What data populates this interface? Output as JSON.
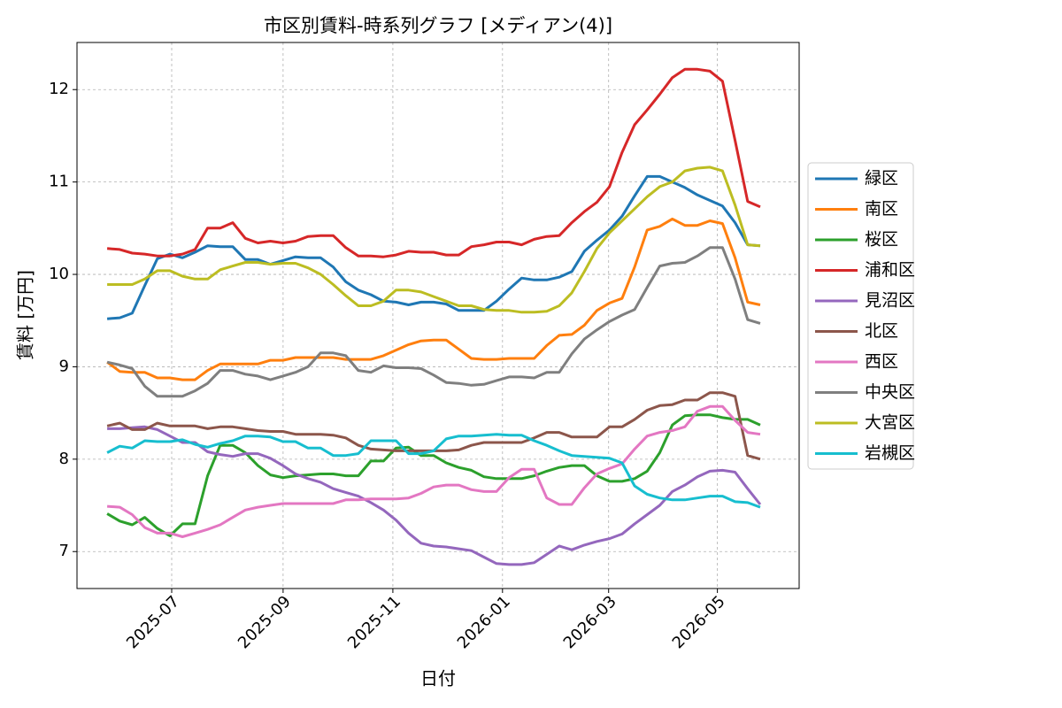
{
  "chart_data": {
    "type": "line",
    "title": "市区別賃料-時系列グラフ [メディアン(4)]",
    "x_label": "日付",
    "y_label": "賃料 [万円]",
    "xlim": [
      -2.4,
      55.1
    ],
    "xticks": [
      {
        "value": 5.14,
        "label": "2025-07"
      },
      {
        "value": 14.01,
        "label": "2025-09"
      },
      {
        "value": 22.75,
        "label": "2025-11"
      },
      {
        "value": 31.48,
        "label": "2026-01"
      },
      {
        "value": 39.93,
        "label": "2026-03"
      },
      {
        "value": 48.59,
        "label": "2026-05"
      }
    ],
    "ylim": [
      6.6,
      12.51
    ],
    "yticks": [
      7,
      8,
      9,
      10,
      11,
      12
    ],
    "grid": true,
    "legend": "right",
    "series": [
      {
        "name": "緑区",
        "color": "#1f77b4",
        "values": [
          9.52,
          9.53,
          9.58,
          9.88,
          10.17,
          10.22,
          10.18,
          10.24,
          10.31,
          10.3,
          10.3,
          10.16,
          10.16,
          10.11,
          10.15,
          10.19,
          10.18,
          10.18,
          10.08,
          9.92,
          9.83,
          9.78,
          9.71,
          9.7,
          9.67,
          9.7,
          9.7,
          9.68,
          9.61,
          9.61,
          9.61,
          9.71,
          9.84,
          9.96,
          9.94,
          9.94,
          9.97,
          10.03,
          10.25,
          10.37,
          10.48,
          10.63,
          10.85,
          11.06,
          11.06,
          11.0,
          10.94,
          10.86,
          10.8,
          10.74,
          10.56,
          10.32,
          10.31
        ]
      },
      {
        "name": "南区",
        "color": "#ff7f0e",
        "values": [
          9.05,
          8.95,
          8.94,
          8.94,
          8.88,
          8.88,
          8.86,
          8.86,
          8.96,
          9.03,
          9.03,
          9.03,
          9.03,
          9.07,
          9.07,
          9.1,
          9.1,
          9.1,
          9.1,
          9.08,
          9.08,
          9.08,
          9.12,
          9.18,
          9.24,
          9.28,
          9.29,
          9.29,
          9.19,
          9.09,
          9.08,
          9.08,
          9.09,
          9.09,
          9.09,
          9.23,
          9.34,
          9.35,
          9.45,
          9.61,
          9.69,
          9.74,
          10.08,
          10.48,
          10.52,
          10.6,
          10.53,
          10.53,
          10.58,
          10.55,
          10.18,
          9.7,
          9.67
        ]
      },
      {
        "name": "桜区",
        "color": "#2ca02c",
        "values": [
          7.41,
          7.33,
          7.29,
          7.37,
          7.25,
          7.17,
          7.3,
          7.3,
          7.82,
          8.15,
          8.15,
          8.07,
          7.93,
          7.83,
          7.8,
          7.82,
          7.83,
          7.84,
          7.84,
          7.82,
          7.82,
          7.98,
          7.98,
          8.12,
          8.13,
          8.04,
          8.04,
          7.96,
          7.91,
          7.88,
          7.81,
          7.79,
          7.79,
          7.79,
          7.82,
          7.87,
          7.91,
          7.93,
          7.93,
          7.82,
          7.76,
          7.76,
          7.79,
          7.87,
          8.07,
          8.37,
          8.47,
          8.48,
          8.48,
          8.45,
          8.43,
          8.43,
          8.37
        ]
      },
      {
        "name": "浦和区",
        "color": "#d62728",
        "values": [
          10.28,
          10.27,
          10.23,
          10.22,
          10.2,
          10.2,
          10.22,
          10.27,
          10.5,
          10.5,
          10.56,
          10.39,
          10.34,
          10.36,
          10.34,
          10.36,
          10.41,
          10.42,
          10.42,
          10.29,
          10.2,
          10.2,
          10.19,
          10.21,
          10.25,
          10.24,
          10.24,
          10.21,
          10.21,
          10.3,
          10.32,
          10.35,
          10.35,
          10.32,
          10.38,
          10.41,
          10.42,
          10.56,
          10.68,
          10.78,
          10.95,
          11.32,
          11.62,
          11.78,
          11.95,
          12.13,
          12.22,
          12.22,
          12.2,
          12.09,
          11.45,
          10.79,
          10.73
        ]
      },
      {
        "name": "見沼区",
        "color": "#9467bd",
        "values": [
          8.33,
          8.33,
          8.34,
          8.35,
          8.32,
          8.25,
          8.18,
          8.18,
          8.08,
          8.05,
          8.03,
          8.06,
          8.06,
          8.01,
          7.93,
          7.84,
          7.79,
          7.75,
          7.68,
          7.64,
          7.6,
          7.53,
          7.45,
          7.34,
          7.2,
          7.09,
          7.06,
          7.05,
          7.03,
          7.01,
          6.94,
          6.87,
          6.86,
          6.86,
          6.88,
          6.97,
          7.06,
          7.02,
          7.07,
          7.11,
          7.14,
          7.19,
          7.3,
          7.4,
          7.5,
          7.65,
          7.72,
          7.81,
          7.87,
          7.88,
          7.86,
          7.68,
          7.51
        ]
      },
      {
        "name": "北区",
        "color": "#8c564b",
        "values": [
          8.36,
          8.39,
          8.32,
          8.32,
          8.39,
          8.36,
          8.36,
          8.36,
          8.33,
          8.35,
          8.35,
          8.33,
          8.31,
          8.3,
          8.3,
          8.27,
          8.27,
          8.27,
          8.26,
          8.23,
          8.15,
          8.11,
          8.1,
          8.09,
          8.09,
          8.09,
          8.09,
          8.09,
          8.1,
          8.15,
          8.18,
          8.18,
          8.18,
          8.18,
          8.23,
          8.29,
          8.29,
          8.24,
          8.24,
          8.24,
          8.35,
          8.35,
          8.43,
          8.53,
          8.58,
          8.59,
          8.64,
          8.64,
          8.72,
          8.72,
          8.68,
          8.04,
          8.0
        ]
      },
      {
        "name": "西区",
        "color": "#e377c2",
        "values": [
          7.49,
          7.48,
          7.4,
          7.26,
          7.2,
          7.2,
          7.16,
          7.2,
          7.24,
          7.29,
          7.37,
          7.45,
          7.48,
          7.5,
          7.52,
          7.52,
          7.52,
          7.52,
          7.52,
          7.56,
          7.56,
          7.57,
          7.57,
          7.57,
          7.58,
          7.63,
          7.7,
          7.72,
          7.72,
          7.67,
          7.65,
          7.65,
          7.8,
          7.89,
          7.89,
          7.58,
          7.51,
          7.51,
          7.69,
          7.84,
          7.9,
          7.95,
          8.11,
          8.25,
          8.29,
          8.31,
          8.35,
          8.52,
          8.57,
          8.57,
          8.42,
          8.29,
          8.27
        ]
      },
      {
        "name": "中央区",
        "color": "#7f7f7f",
        "values": [
          9.05,
          9.02,
          8.98,
          8.79,
          8.68,
          8.68,
          8.68,
          8.74,
          8.82,
          8.96,
          8.96,
          8.92,
          8.9,
          8.86,
          8.9,
          8.94,
          9.0,
          9.15,
          9.15,
          9.12,
          8.96,
          8.94,
          9.01,
          8.99,
          8.99,
          8.98,
          8.91,
          8.83,
          8.82,
          8.8,
          8.81,
          8.85,
          8.89,
          8.89,
          8.88,
          8.94,
          8.94,
          9.14,
          9.3,
          9.4,
          9.49,
          9.56,
          9.62,
          9.86,
          10.09,
          10.12,
          10.13,
          10.2,
          10.29,
          10.29,
          9.95,
          9.51,
          9.47
        ]
      },
      {
        "name": "大宮区",
        "color": "#bcbd22",
        "values": [
          9.89,
          9.89,
          9.89,
          9.95,
          10.04,
          10.04,
          9.98,
          9.95,
          9.95,
          10.05,
          10.09,
          10.13,
          10.13,
          10.11,
          10.12,
          10.12,
          10.07,
          10.0,
          9.89,
          9.77,
          9.66,
          9.66,
          9.71,
          9.83,
          9.83,
          9.81,
          9.76,
          9.71,
          9.66,
          9.66,
          9.62,
          9.61,
          9.61,
          9.59,
          9.59,
          9.6,
          9.66,
          9.8,
          10.03,
          10.28,
          10.45,
          10.58,
          10.71,
          10.84,
          10.95,
          11.0,
          11.12,
          11.15,
          11.16,
          11.12,
          10.75,
          10.32,
          10.31
        ]
      },
      {
        "name": "岩槻区",
        "color": "#17becf",
        "values": [
          8.07,
          8.14,
          8.12,
          8.2,
          8.19,
          8.19,
          8.21,
          8.16,
          8.13,
          8.17,
          8.2,
          8.25,
          8.25,
          8.24,
          8.19,
          8.19,
          8.12,
          8.12,
          8.04,
          8.04,
          8.06,
          8.2,
          8.2,
          8.2,
          8.06,
          8.06,
          8.09,
          8.22,
          8.25,
          8.25,
          8.26,
          8.27,
          8.26,
          8.26,
          8.2,
          8.15,
          8.09,
          8.04,
          8.03,
          8.02,
          8.01,
          7.96,
          7.71,
          7.62,
          7.58,
          7.56,
          7.56,
          7.58,
          7.6,
          7.6,
          7.54,
          7.53,
          7.48
        ]
      }
    ]
  }
}
